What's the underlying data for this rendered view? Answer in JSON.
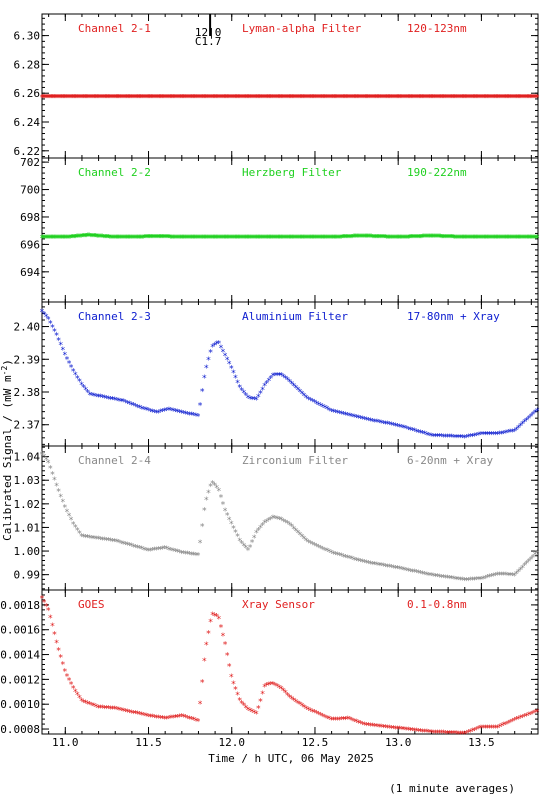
{
  "chart_data": {
    "type": "scatter",
    "xlabel": "Time / h UTC, 06 May 2025",
    "ylabel": "Calibrated Signal / (mW m",
    "ylabel_sup": "-2",
    "ylabel_close": ")",
    "footnote": "(1 minute averages)",
    "xlim": [
      10.86,
      13.84
    ],
    "xticks": [
      "11.0",
      "11.5",
      "12.0",
      "12.5",
      "13.0",
      "13.5"
    ],
    "xtick_values": [
      11.0,
      11.5,
      12.0,
      12.5,
      13.0,
      13.5
    ],
    "marker": "*",
    "flare_marker": {
      "time": 11.87,
      "labels": [
        "12|0",
        "C1.7"
      ]
    },
    "panels": [
      {
        "name": "Channel 2-1",
        "filter": "Lyman-alpha Filter",
        "band": "120-123nm",
        "color": "#e02020",
        "ylim": [
          6.215,
          6.315
        ],
        "yticks": [
          "6.22",
          "6.24",
          "6.26",
          "6.28",
          "6.30"
        ],
        "ytick_values": [
          6.22,
          6.24,
          6.26,
          6.28,
          6.3
        ],
        "x": [
          10.86,
          11.0,
          11.2,
          11.4,
          11.6,
          11.8,
          12.0,
          12.2,
          12.4,
          12.6,
          12.8,
          13.0,
          13.2,
          13.4,
          13.6,
          13.84
        ],
        "y": [
          6.257,
          6.257,
          6.257,
          6.257,
          6.257,
          6.257,
          6.257,
          6.257,
          6.257,
          6.257,
          6.257,
          6.257,
          6.257,
          6.257,
          6.257,
          6.257
        ]
      },
      {
        "name": "Channel 2-2",
        "filter": "Herzberg Filter",
        "band": "190-222nm",
        "color": "#20d020",
        "ylim": [
          691.8,
          702.3
        ],
        "yticks": [
          "694",
          "696",
          "698",
          "700",
          "702"
        ],
        "ytick_values": [
          694,
          696,
          698,
          700,
          702
        ],
        "x": [
          10.86,
          11.0,
          11.14,
          11.3,
          11.55,
          11.8,
          12.0,
          12.2,
          12.4,
          12.6,
          12.78,
          13.0,
          13.2,
          13.4,
          13.6,
          13.84
        ],
        "y": [
          696.45,
          696.45,
          696.6,
          696.45,
          696.5,
          696.45,
          696.45,
          696.45,
          696.45,
          696.45,
          696.55,
          696.45,
          696.55,
          696.45,
          696.45,
          696.45
        ]
      },
      {
        "name": "Channel 2-3",
        "filter": "Aluminium Filter",
        "band": "17-80nm + Xray",
        "color": "#1020d0",
        "ylim": [
          2.3635,
          2.4075
        ],
        "yticks": [
          "2.37",
          "2.38",
          "2.39",
          "2.40"
        ],
        "ytick_values": [
          2.37,
          2.38,
          2.39,
          2.4
        ],
        "x": [
          10.86,
          10.9,
          10.95,
          11.0,
          11.05,
          11.1,
          11.15,
          11.25,
          11.35,
          11.45,
          11.55,
          11.62,
          11.7,
          11.8,
          11.84,
          11.88,
          11.92,
          11.96,
          12.0,
          12.05,
          12.1,
          12.15,
          12.2,
          12.25,
          12.3,
          12.35,
          12.45,
          12.6,
          12.8,
          13.0,
          13.2,
          13.4,
          13.5,
          13.6,
          13.7,
          13.84
        ],
        "y": [
          2.4045,
          2.402,
          2.397,
          2.391,
          2.386,
          2.382,
          2.379,
          2.378,
          2.377,
          2.375,
          2.3735,
          2.3745,
          2.3735,
          2.3725,
          2.386,
          2.3935,
          2.395,
          2.391,
          2.387,
          2.381,
          2.378,
          2.3775,
          2.382,
          2.385,
          2.385,
          2.383,
          2.378,
          2.374,
          2.3715,
          2.3695,
          2.3665,
          2.366,
          2.367,
          2.367,
          2.368,
          2.3745
        ]
      },
      {
        "name": "Channel 2-4",
        "filter": "Zirconium Filter",
        "band": "6-20nm + Xray",
        "color": "#888888",
        "ylim": [
          0.9835,
          1.0445
        ],
        "yticks": [
          "0.99",
          "1.00",
          "1.01",
          "1.02",
          "1.03",
          "1.04"
        ],
        "ytick_values": [
          0.99,
          1.0,
          1.01,
          1.02,
          1.03,
          1.04
        ],
        "x": [
          10.86,
          10.9,
          10.95,
          11.0,
          11.05,
          11.1,
          11.2,
          11.3,
          11.4,
          11.5,
          11.6,
          11.7,
          11.8,
          11.84,
          11.88,
          11.92,
          11.96,
          12.0,
          12.05,
          12.1,
          12.15,
          12.2,
          12.25,
          12.3,
          12.35,
          12.45,
          12.6,
          12.8,
          13.0,
          13.2,
          13.4,
          13.5,
          13.6,
          13.7,
          13.84
        ],
        "y": [
          1.041,
          1.037,
          1.027,
          1.018,
          1.011,
          1.006,
          1.005,
          1.004,
          1.002,
          1.0,
          1.001,
          0.999,
          0.998,
          1.02,
          1.029,
          1.026,
          1.017,
          1.011,
          1.004,
          1.0,
          1.008,
          1.012,
          1.014,
          1.013,
          1.011,
          1.004,
          0.999,
          0.995,
          0.9925,
          0.9895,
          0.9875,
          0.988,
          0.99,
          0.9895,
          0.9995
        ]
      },
      {
        "name": "GOES",
        "filter": "Xray Sensor",
        "band": "0.1-0.8nm",
        "color": "#e02020",
        "ylim": [
          0.00076,
          0.00192
        ],
        "yticks": [
          "0.0008",
          "0.0010",
          "0.0012",
          "0.0014",
          "0.0016",
          "0.0018"
        ],
        "ytick_values": [
          0.0008,
          0.001,
          0.0012,
          0.0014,
          0.0016,
          0.0018
        ],
        "x": [
          10.86,
          10.9,
          10.95,
          11.0,
          11.05,
          11.1,
          11.2,
          11.3,
          11.4,
          11.5,
          11.6,
          11.7,
          11.8,
          11.84,
          11.88,
          11.92,
          11.96,
          12.0,
          12.05,
          12.1,
          12.15,
          12.2,
          12.25,
          12.3,
          12.35,
          12.45,
          12.6,
          12.7,
          12.8,
          13.0,
          13.2,
          13.4,
          13.5,
          13.6,
          13.7,
          13.84
        ],
        "y": [
          0.00185,
          0.00175,
          0.00148,
          0.00125,
          0.00112,
          0.00102,
          0.00097,
          0.00096,
          0.00093,
          0.0009,
          0.00088,
          0.0009,
          0.00086,
          0.00142,
          0.00172,
          0.0017,
          0.00148,
          0.0012,
          0.00102,
          0.00095,
          0.00092,
          0.00115,
          0.00116,
          0.00112,
          0.00105,
          0.00096,
          0.00087,
          0.00088,
          0.00083,
          0.0008,
          0.00077,
          0.00076,
          0.00081,
          0.00081,
          0.00087,
          0.00094
        ]
      }
    ]
  }
}
